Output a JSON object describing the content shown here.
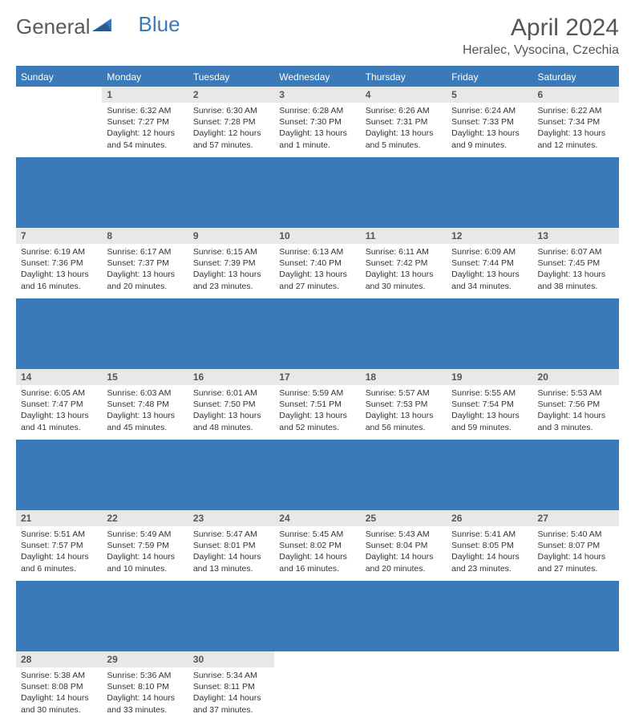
{
  "brand": {
    "part1": "General",
    "part2": "Blue"
  },
  "title": "April 2024",
  "location": "Heralec, Vysocina, Czechia",
  "colors": {
    "accent": "#3a7ab8",
    "header_bg": "#3a7ab8",
    "daynum_bg": "#e8e8e8",
    "text": "#333333",
    "muted": "#555555"
  },
  "weekdays": [
    "Sunday",
    "Monday",
    "Tuesday",
    "Wednesday",
    "Thursday",
    "Friday",
    "Saturday"
  ],
  "weeks": [
    [
      null,
      {
        "n": "1",
        "sr": "6:32 AM",
        "ss": "7:27 PM",
        "dl": "12 hours and 54 minutes."
      },
      {
        "n": "2",
        "sr": "6:30 AM",
        "ss": "7:28 PM",
        "dl": "12 hours and 57 minutes."
      },
      {
        "n": "3",
        "sr": "6:28 AM",
        "ss": "7:30 PM",
        "dl": "13 hours and 1 minute."
      },
      {
        "n": "4",
        "sr": "6:26 AM",
        "ss": "7:31 PM",
        "dl": "13 hours and 5 minutes."
      },
      {
        "n": "5",
        "sr": "6:24 AM",
        "ss": "7:33 PM",
        "dl": "13 hours and 9 minutes."
      },
      {
        "n": "6",
        "sr": "6:22 AM",
        "ss": "7:34 PM",
        "dl": "13 hours and 12 minutes."
      }
    ],
    [
      {
        "n": "7",
        "sr": "6:19 AM",
        "ss": "7:36 PM",
        "dl": "13 hours and 16 minutes."
      },
      {
        "n": "8",
        "sr": "6:17 AM",
        "ss": "7:37 PM",
        "dl": "13 hours and 20 minutes."
      },
      {
        "n": "9",
        "sr": "6:15 AM",
        "ss": "7:39 PM",
        "dl": "13 hours and 23 minutes."
      },
      {
        "n": "10",
        "sr": "6:13 AM",
        "ss": "7:40 PM",
        "dl": "13 hours and 27 minutes."
      },
      {
        "n": "11",
        "sr": "6:11 AM",
        "ss": "7:42 PM",
        "dl": "13 hours and 30 minutes."
      },
      {
        "n": "12",
        "sr": "6:09 AM",
        "ss": "7:44 PM",
        "dl": "13 hours and 34 minutes."
      },
      {
        "n": "13",
        "sr": "6:07 AM",
        "ss": "7:45 PM",
        "dl": "13 hours and 38 minutes."
      }
    ],
    [
      {
        "n": "14",
        "sr": "6:05 AM",
        "ss": "7:47 PM",
        "dl": "13 hours and 41 minutes."
      },
      {
        "n": "15",
        "sr": "6:03 AM",
        "ss": "7:48 PM",
        "dl": "13 hours and 45 minutes."
      },
      {
        "n": "16",
        "sr": "6:01 AM",
        "ss": "7:50 PM",
        "dl": "13 hours and 48 minutes."
      },
      {
        "n": "17",
        "sr": "5:59 AM",
        "ss": "7:51 PM",
        "dl": "13 hours and 52 minutes."
      },
      {
        "n": "18",
        "sr": "5:57 AM",
        "ss": "7:53 PM",
        "dl": "13 hours and 56 minutes."
      },
      {
        "n": "19",
        "sr": "5:55 AM",
        "ss": "7:54 PM",
        "dl": "13 hours and 59 minutes."
      },
      {
        "n": "20",
        "sr": "5:53 AM",
        "ss": "7:56 PM",
        "dl": "14 hours and 3 minutes."
      }
    ],
    [
      {
        "n": "21",
        "sr": "5:51 AM",
        "ss": "7:57 PM",
        "dl": "14 hours and 6 minutes."
      },
      {
        "n": "22",
        "sr": "5:49 AM",
        "ss": "7:59 PM",
        "dl": "14 hours and 10 minutes."
      },
      {
        "n": "23",
        "sr": "5:47 AM",
        "ss": "8:01 PM",
        "dl": "14 hours and 13 minutes."
      },
      {
        "n": "24",
        "sr": "5:45 AM",
        "ss": "8:02 PM",
        "dl": "14 hours and 16 minutes."
      },
      {
        "n": "25",
        "sr": "5:43 AM",
        "ss": "8:04 PM",
        "dl": "14 hours and 20 minutes."
      },
      {
        "n": "26",
        "sr": "5:41 AM",
        "ss": "8:05 PM",
        "dl": "14 hours and 23 minutes."
      },
      {
        "n": "27",
        "sr": "5:40 AM",
        "ss": "8:07 PM",
        "dl": "14 hours and 27 minutes."
      }
    ],
    [
      {
        "n": "28",
        "sr": "5:38 AM",
        "ss": "8:08 PM",
        "dl": "14 hours and 30 minutes."
      },
      {
        "n": "29",
        "sr": "5:36 AM",
        "ss": "8:10 PM",
        "dl": "14 hours and 33 minutes."
      },
      {
        "n": "30",
        "sr": "5:34 AM",
        "ss": "8:11 PM",
        "dl": "14 hours and 37 minutes."
      },
      null,
      null,
      null,
      null
    ]
  ],
  "labels": {
    "sunrise": "Sunrise:",
    "sunset": "Sunset:",
    "daylight": "Daylight:"
  }
}
